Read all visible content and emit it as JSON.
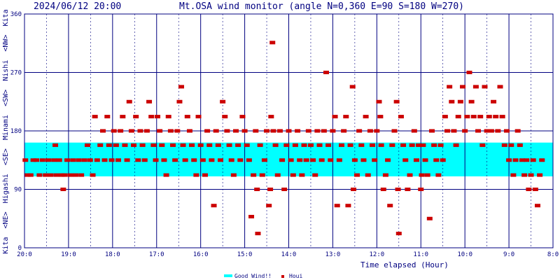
{
  "header": {
    "timestamp": "2024/06/12 20:00",
    "title": "Mt.OSA wind monitor (angle N=0,360 E=90 S=180 W=270)"
  },
  "chart_data": {
    "type": "scatter",
    "xlabel": "Time elapsed (Hour)",
    "y_axis_directions_label": "Kita  <NE>  Higashi  <SE>  Minami  <SW>  Nishi  <NW>  Kita",
    "xlim": [
      20,
      8
    ],
    "ylim": [
      0,
      360
    ],
    "x_ticks": [
      "20:0",
      "19:0",
      "18:0",
      "17:0",
      "16:0",
      "15:0",
      "14:0",
      "13:0",
      "12:0",
      "11:0",
      "10:0",
      "9:0",
      "8:0"
    ],
    "y_ticks": [
      "0",
      "90",
      "180",
      "270",
      "360"
    ],
    "grid": true,
    "legend_position": "bottom-center",
    "good_wind_band": {
      "name": "Good Wind!!",
      "y_range": [
        110,
        162
      ],
      "color": "#00ffff"
    },
    "series": [
      {
        "name": "Houi",
        "color": "#cc0000",
        "points": [
          [
            19.98,
            135
          ],
          [
            19.93,
            112
          ],
          [
            19.86,
            112
          ],
          [
            19.8,
            135
          ],
          [
            19.73,
            135
          ],
          [
            19.66,
            112
          ],
          [
            19.59,
            135
          ],
          [
            19.52,
            112
          ],
          [
            19.46,
            135
          ],
          [
            19.4,
            112
          ],
          [
            19.33,
            135
          ],
          [
            19.3,
            158
          ],
          [
            19.27,
            112
          ],
          [
            19.21,
            135
          ],
          [
            19.15,
            112
          ],
          [
            19.12,
            90
          ],
          [
            19.09,
            112
          ],
          [
            19.03,
            135
          ],
          [
            18.96,
            112
          ],
          [
            18.9,
            135
          ],
          [
            18.84,
            112
          ],
          [
            18.77,
            135
          ],
          [
            18.71,
            112
          ],
          [
            18.64,
            135
          ],
          [
            18.57,
            158
          ],
          [
            18.51,
            135
          ],
          [
            18.45,
            112
          ],
          [
            18.4,
            202
          ],
          [
            18.35,
            135
          ],
          [
            18.28,
            158
          ],
          [
            18.22,
            180
          ],
          [
            18.18,
            135
          ],
          [
            18.12,
            202
          ],
          [
            18.08,
            158
          ],
          [
            18.02,
            135
          ],
          [
            17.97,
            180
          ],
          [
            17.92,
            158
          ],
          [
            17.87,
            135
          ],
          [
            17.82,
            180
          ],
          [
            17.77,
            202
          ],
          [
            17.72,
            158
          ],
          [
            17.67,
            135
          ],
          [
            17.62,
            225
          ],
          [
            17.57,
            180
          ],
          [
            17.52,
            158
          ],
          [
            17.47,
            202
          ],
          [
            17.42,
            135
          ],
          [
            17.37,
            180
          ],
          [
            17.32,
            158
          ],
          [
            17.27,
            135
          ],
          [
            17.22,
            180
          ],
          [
            17.17,
            225
          ],
          [
            17.12,
            202
          ],
          [
            17.07,
            158
          ],
          [
            17.02,
            135
          ],
          [
            16.98,
            202
          ],
          [
            16.93,
            180
          ],
          [
            16.88,
            158
          ],
          [
            16.83,
            135
          ],
          [
            16.78,
            112
          ],
          [
            16.73,
            202
          ],
          [
            16.68,
            180
          ],
          [
            16.63,
            158
          ],
          [
            16.58,
            135
          ],
          [
            16.53,
            180
          ],
          [
            16.48,
            225
          ],
          [
            16.44,
            248
          ],
          [
            16.4,
            158
          ],
          [
            16.35,
            135
          ],
          [
            16.3,
            202
          ],
          [
            16.25,
            180
          ],
          [
            16.2,
            158
          ],
          [
            16.15,
            135
          ],
          [
            16.1,
            112
          ],
          [
            16.05,
            202
          ],
          [
            16.0,
            158
          ],
          [
            15.95,
            135
          ],
          [
            15.9,
            112
          ],
          [
            15.85,
            180
          ],
          [
            15.8,
            158
          ],
          [
            15.75,
            135
          ],
          [
            15.7,
            65
          ],
          [
            15.65,
            180
          ],
          [
            15.6,
            158
          ],
          [
            15.55,
            135
          ],
          [
            15.5,
            225
          ],
          [
            15.45,
            202
          ],
          [
            15.4,
            180
          ],
          [
            15.35,
            158
          ],
          [
            15.3,
            135
          ],
          [
            15.25,
            112
          ],
          [
            15.2,
            180
          ],
          [
            15.15,
            158
          ],
          [
            15.1,
            135
          ],
          [
            15.05,
            202
          ],
          [
            15.0,
            180
          ],
          [
            14.95,
            158
          ],
          [
            14.9,
            135
          ],
          [
            14.85,
            48
          ],
          [
            14.8,
            112
          ],
          [
            14.75,
            180
          ],
          [
            14.72,
            90
          ],
          [
            14.7,
            22
          ],
          [
            14.65,
            158
          ],
          [
            14.6,
            112
          ],
          [
            14.55,
            135
          ],
          [
            14.5,
            180
          ],
          [
            14.45,
            65
          ],
          [
            14.42,
            90
          ],
          [
            14.4,
            202
          ],
          [
            14.37,
            316
          ],
          [
            14.35,
            180
          ],
          [
            14.3,
            158
          ],
          [
            14.25,
            112
          ],
          [
            14.2,
            180
          ],
          [
            14.15,
            135
          ],
          [
            14.1,
            90
          ],
          [
            14.05,
            158
          ],
          [
            14.0,
            180
          ],
          [
            13.95,
            135
          ],
          [
            13.9,
            112
          ],
          [
            13.85,
            158
          ],
          [
            13.8,
            180
          ],
          [
            13.75,
            135
          ],
          [
            13.7,
            112
          ],
          [
            13.65,
            158
          ],
          [
            13.6,
            135
          ],
          [
            13.55,
            180
          ],
          [
            13.5,
            158
          ],
          [
            13.45,
            135
          ],
          [
            13.4,
            112
          ],
          [
            13.35,
            180
          ],
          [
            13.3,
            158
          ],
          [
            13.25,
            135
          ],
          [
            13.2,
            180
          ],
          [
            13.15,
            270
          ],
          [
            13.1,
            158
          ],
          [
            13.05,
            135
          ],
          [
            13.0,
            180
          ],
          [
            12.95,
            202
          ],
          [
            12.9,
            65
          ],
          [
            12.85,
            135
          ],
          [
            12.8,
            158
          ],
          [
            12.75,
            180
          ],
          [
            12.7,
            202
          ],
          [
            12.65,
            65
          ],
          [
            12.6,
            158
          ],
          [
            12.55,
            248
          ],
          [
            12.53,
            90
          ],
          [
            12.5,
            135
          ],
          [
            12.45,
            112
          ],
          [
            12.4,
            180
          ],
          [
            12.35,
            158
          ],
          [
            12.3,
            135
          ],
          [
            12.25,
            202
          ],
          [
            12.2,
            112
          ],
          [
            12.15,
            180
          ],
          [
            12.1,
            158
          ],
          [
            12.05,
            135
          ],
          [
            12.0,
            180
          ],
          [
            11.95,
            225
          ],
          [
            11.92,
            202
          ],
          [
            11.9,
            158
          ],
          [
            11.85,
            90
          ],
          [
            11.8,
            112
          ],
          [
            11.75,
            135
          ],
          [
            11.7,
            65
          ],
          [
            11.65,
            158
          ],
          [
            11.6,
            180
          ],
          [
            11.55,
            225
          ],
          [
            11.52,
            90
          ],
          [
            11.5,
            22
          ],
          [
            11.45,
            202
          ],
          [
            11.4,
            158
          ],
          [
            11.35,
            135
          ],
          [
            11.3,
            90
          ],
          [
            11.25,
            112
          ],
          [
            11.2,
            158
          ],
          [
            11.15,
            180
          ],
          [
            11.1,
            135
          ],
          [
            11.05,
            158
          ],
          [
            11.0,
            90
          ],
          [
            10.98,
            112
          ],
          [
            10.95,
            158
          ],
          [
            10.9,
            135
          ],
          [
            10.85,
            112
          ],
          [
            10.8,
            45
          ],
          [
            10.75,
            180
          ],
          [
            10.7,
            158
          ],
          [
            10.65,
            135
          ],
          [
            10.6,
            112
          ],
          [
            10.55,
            158
          ],
          [
            10.5,
            135
          ],
          [
            10.45,
            202
          ],
          [
            10.4,
            180
          ],
          [
            10.35,
            248
          ],
          [
            10.3,
            225
          ],
          [
            10.25,
            180
          ],
          [
            10.2,
            158
          ],
          [
            10.15,
            202
          ],
          [
            10.1,
            225
          ],
          [
            10.05,
            248
          ],
          [
            10.0,
            180
          ],
          [
            9.95,
            202
          ],
          [
            9.9,
            270
          ],
          [
            9.85,
            225
          ],
          [
            9.8,
            202
          ],
          [
            9.75,
            248
          ],
          [
            9.7,
            180
          ],
          [
            9.65,
            202
          ],
          [
            9.6,
            158
          ],
          [
            9.55,
            248
          ],
          [
            9.5,
            180
          ],
          [
            9.45,
            202
          ],
          [
            9.4,
            180
          ],
          [
            9.35,
            225
          ],
          [
            9.3,
            202
          ],
          [
            9.25,
            180
          ],
          [
            9.2,
            248
          ],
          [
            9.15,
            202
          ],
          [
            9.1,
            158
          ],
          [
            9.05,
            180
          ],
          [
            9.0,
            135
          ],
          [
            8.95,
            158
          ],
          [
            8.9,
            112
          ],
          [
            8.85,
            135
          ],
          [
            8.8,
            180
          ],
          [
            8.75,
            158
          ],
          [
            8.7,
            135
          ],
          [
            8.65,
            112
          ],
          [
            8.6,
            135
          ],
          [
            8.55,
            90
          ],
          [
            8.5,
            112
          ],
          [
            8.45,
            135
          ],
          [
            8.4,
            90
          ],
          [
            8.35,
            65
          ],
          [
            8.3,
            112
          ],
          [
            8.25,
            135
          ]
        ]
      }
    ]
  }
}
